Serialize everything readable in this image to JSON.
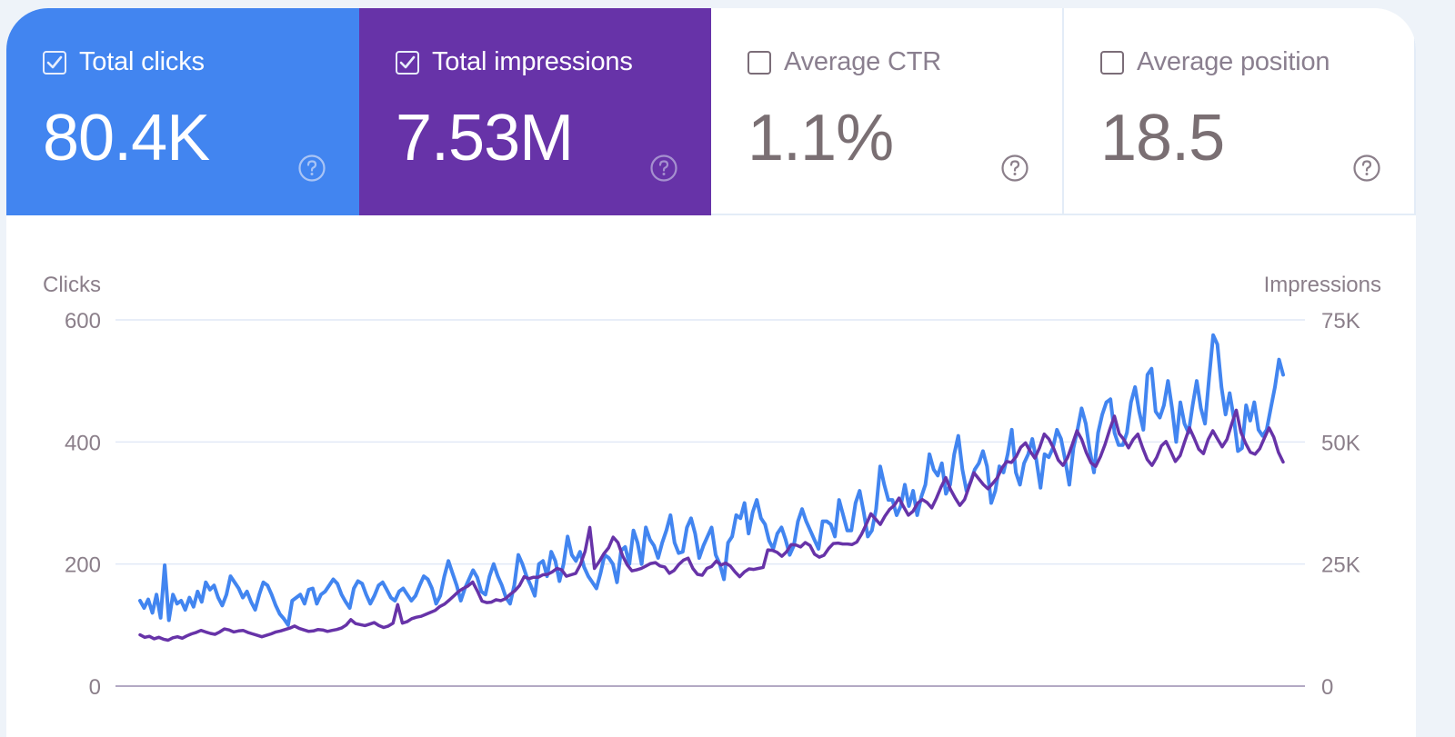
{
  "metrics": [
    {
      "label": "Total clicks",
      "value": "80.4K",
      "checked": true,
      "color": "#4285f0"
    },
    {
      "label": "Total impressions",
      "value": "7.53M",
      "checked": true,
      "color": "#6733a8"
    },
    {
      "label": "Average CTR",
      "value": "1.1%",
      "checked": false,
      "color": "#ffffff"
    },
    {
      "label": "Average position",
      "value": "18.5",
      "checked": false,
      "color": "#ffffff"
    }
  ],
  "chart_data": {
    "type": "line",
    "title": "",
    "xlabel": "",
    "ylabel": "Clicks",
    "ylabel_right": "Impressions",
    "ylim": [
      0,
      600
    ],
    "ylim_right": [
      0,
      75000
    ],
    "yticks": [
      "0",
      "200",
      "400",
      "600"
    ],
    "yticks_right": [
      "0",
      "25K",
      "50K",
      "75K"
    ],
    "grid": true,
    "series": [
      {
        "name": "Clicks",
        "axis": "left",
        "color": "#4285f0",
        "values": [
          140,
          128,
          142,
          120,
          150,
          112,
          198,
          108,
          150,
          135,
          140,
          125,
          145,
          130,
          155,
          138,
          170,
          158,
          165,
          145,
          132,
          150,
          180,
          170,
          160,
          145,
          155,
          138,
          125,
          150,
          170,
          165,
          150,
          132,
          118,
          110,
          100,
          140,
          145,
          150,
          135,
          158,
          160,
          135,
          150,
          155,
          165,
          175,
          168,
          150,
          138,
          128,
          160,
          172,
          168,
          150,
          135,
          148,
          165,
          170,
          158,
          145,
          140,
          155,
          160,
          150,
          140,
          148,
          165,
          180,
          175,
          160,
          135,
          148,
          180,
          205,
          185,
          165,
          140,
          160,
          175,
          190,
          178,
          155,
          150,
          180,
          200,
          180,
          165,
          145,
          135,
          165,
          215,
          200,
          180,
          165,
          148,
          200,
          205,
          180,
          220,
          205,
          172,
          200,
          245,
          215,
          205,
          220,
          195,
          180,
          170,
          160,
          185,
          215,
          210,
          200,
          170,
          222,
          228,
          200,
          255,
          235,
          200,
          260,
          240,
          230,
          210,
          235,
          255,
          280,
          235,
          218,
          220,
          260,
          275,
          250,
          210,
          230,
          245,
          260,
          215,
          200,
          175,
          235,
          245,
          280,
          275,
          300,
          250,
          285,
          305,
          275,
          265,
          238,
          225,
          250,
          260,
          240,
          215,
          230,
          270,
          290,
          270,
          255,
          240,
          225,
          270,
          270,
          265,
          245,
          305,
          280,
          255,
          255,
          300,
          320,
          285,
          245,
          255,
          290,
          360,
          330,
          305,
          305,
          280,
          295,
          330,
          295,
          320,
          280,
          310,
          330,
          380,
          355,
          345,
          365,
          315,
          330,
          380,
          410,
          355,
          320,
          335,
          355,
          365,
          385,
          360,
          300,
          320,
          360,
          350,
          380,
          420,
          350,
          330,
          365,
          380,
          405,
          370,
          325,
          380,
          375,
          390,
          420,
          405,
          370,
          330,
          390,
          420,
          455,
          430,
          385,
          350,
          415,
          445,
          465,
          470,
          415,
          395,
          395,
          415,
          465,
          490,
          450,
          420,
          510,
          520,
          450,
          440,
          460,
          500,
          455,
          400,
          465,
          430,
          415,
          460,
          500,
          455,
          430,
          505,
          575,
          560,
          490,
          445,
          480,
          440,
          385,
          390,
          460,
          435,
          465,
          420,
          410,
          420,
          455,
          490,
          535,
          510
        ]
      },
      {
        "name": "Impressions",
        "axis": "right",
        "color": "#6733a8",
        "values": [
          10500,
          10000,
          10200,
          9700,
          10000,
          9600,
          9400,
          9900,
          10100,
          9800,
          10300,
          10700,
          11000,
          11400,
          11100,
          10800,
          10600,
          11100,
          11700,
          11500,
          11100,
          11300,
          11400,
          11000,
          10700,
          10400,
          10100,
          10400,
          10700,
          11100,
          11300,
          11600,
          11900,
          12300,
          11800,
          11500,
          11200,
          11300,
          11600,
          11500,
          11200,
          11400,
          11600,
          11900,
          12500,
          13600,
          12800,
          12600,
          12400,
          12700,
          13000,
          12400,
          12000,
          12300,
          12900,
          16700,
          12900,
          13200,
          13800,
          14100,
          14300,
          14700,
          15100,
          15500,
          16300,
          16800,
          17600,
          18500,
          19400,
          20000,
          20500,
          21300,
          19500,
          17400,
          17100,
          17200,
          17700,
          17500,
          17900,
          18800,
          19500,
          20600,
          22400,
          22000,
          22300,
          22300,
          22800,
          22900,
          23400,
          24100,
          23800,
          22500,
          22800,
          23100,
          24900,
          27600,
          32500,
          24100,
          25500,
          27100,
          28300,
          30500,
          29400,
          26700,
          24800,
          23600,
          23800,
          24100,
          24600,
          25100,
          25300,
          24600,
          24400,
          23100,
          23700,
          24900,
          25800,
          26200,
          24100,
          22900,
          22700,
          24100,
          24500,
          25600,
          24800,
          25200,
          24600,
          23400,
          22400,
          23400,
          24000,
          23900,
          24100,
          24300,
          27900,
          27800,
          27400,
          26600,
          27500,
          29000,
          28900,
          28500,
          29400,
          28800,
          27000,
          26400,
          26800,
          28200,
          29200,
          29300,
          29100,
          29100,
          29000,
          29500,
          31100,
          33100,
          35300,
          34200,
          33100,
          34800,
          36200,
          37000,
          38500,
          36700,
          35000,
          35800,
          37500,
          38200,
          37600,
          36500,
          38500,
          40800,
          42700,
          40300,
          38500,
          37000,
          38200,
          40900,
          43700,
          42500,
          41300,
          40400,
          41500,
          42700,
          44700,
          46000,
          45800,
          47000,
          48900,
          49800,
          48100,
          46700,
          48800,
          51600,
          50600,
          48700,
          46300,
          45200,
          46800,
          49500,
          52300,
          50500,
          47800,
          45700,
          45000,
          47000,
          49500,
          52600,
          55300,
          51700,
          50500,
          48800,
          50500,
          51600,
          48800,
          46400,
          45200,
          46800,
          49200,
          50100,
          48100,
          46000,
          47200,
          50100,
          52900,
          50800,
          48500,
          47600,
          50500,
          52300,
          50600,
          49000,
          50500,
          53600,
          56500,
          52000,
          49700,
          47900,
          47500,
          48600,
          50800,
          52900,
          51000,
          47900,
          45900
        ]
      }
    ]
  }
}
